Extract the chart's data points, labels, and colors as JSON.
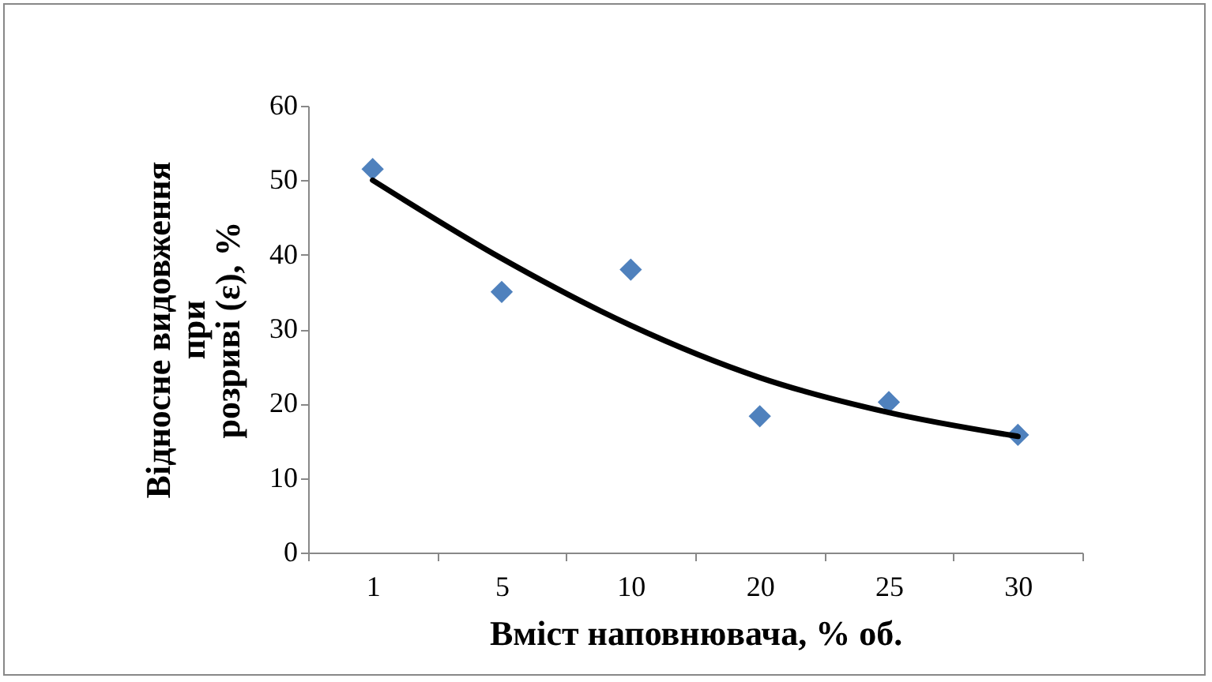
{
  "chart_data": {
    "type": "scatter",
    "xlabel": "Вміст наповнювача, % об.",
    "ylabel": "Відносне видовження\nпри\nрозриві (ε),  %",
    "categories": [
      "1",
      "5",
      "10",
      "20",
      "25",
      "30"
    ],
    "ylim": [
      0,
      60
    ],
    "yticks": [
      0,
      10,
      20,
      30,
      40,
      50,
      60
    ],
    "grid": false,
    "series": [
      {
        "color": "#4f81bd",
        "marker": "diamond",
        "values": [
          51.5,
          35,
          38,
          18.3,
          20.2,
          15.8
        ]
      },
      {
        "type": "line",
        "color": "#000000",
        "marker": "none",
        "line_style": "solid",
        "values": [
          50,
          39.5,
          30.5,
          23.5,
          18.8,
          15.6
        ]
      }
    ]
  }
}
